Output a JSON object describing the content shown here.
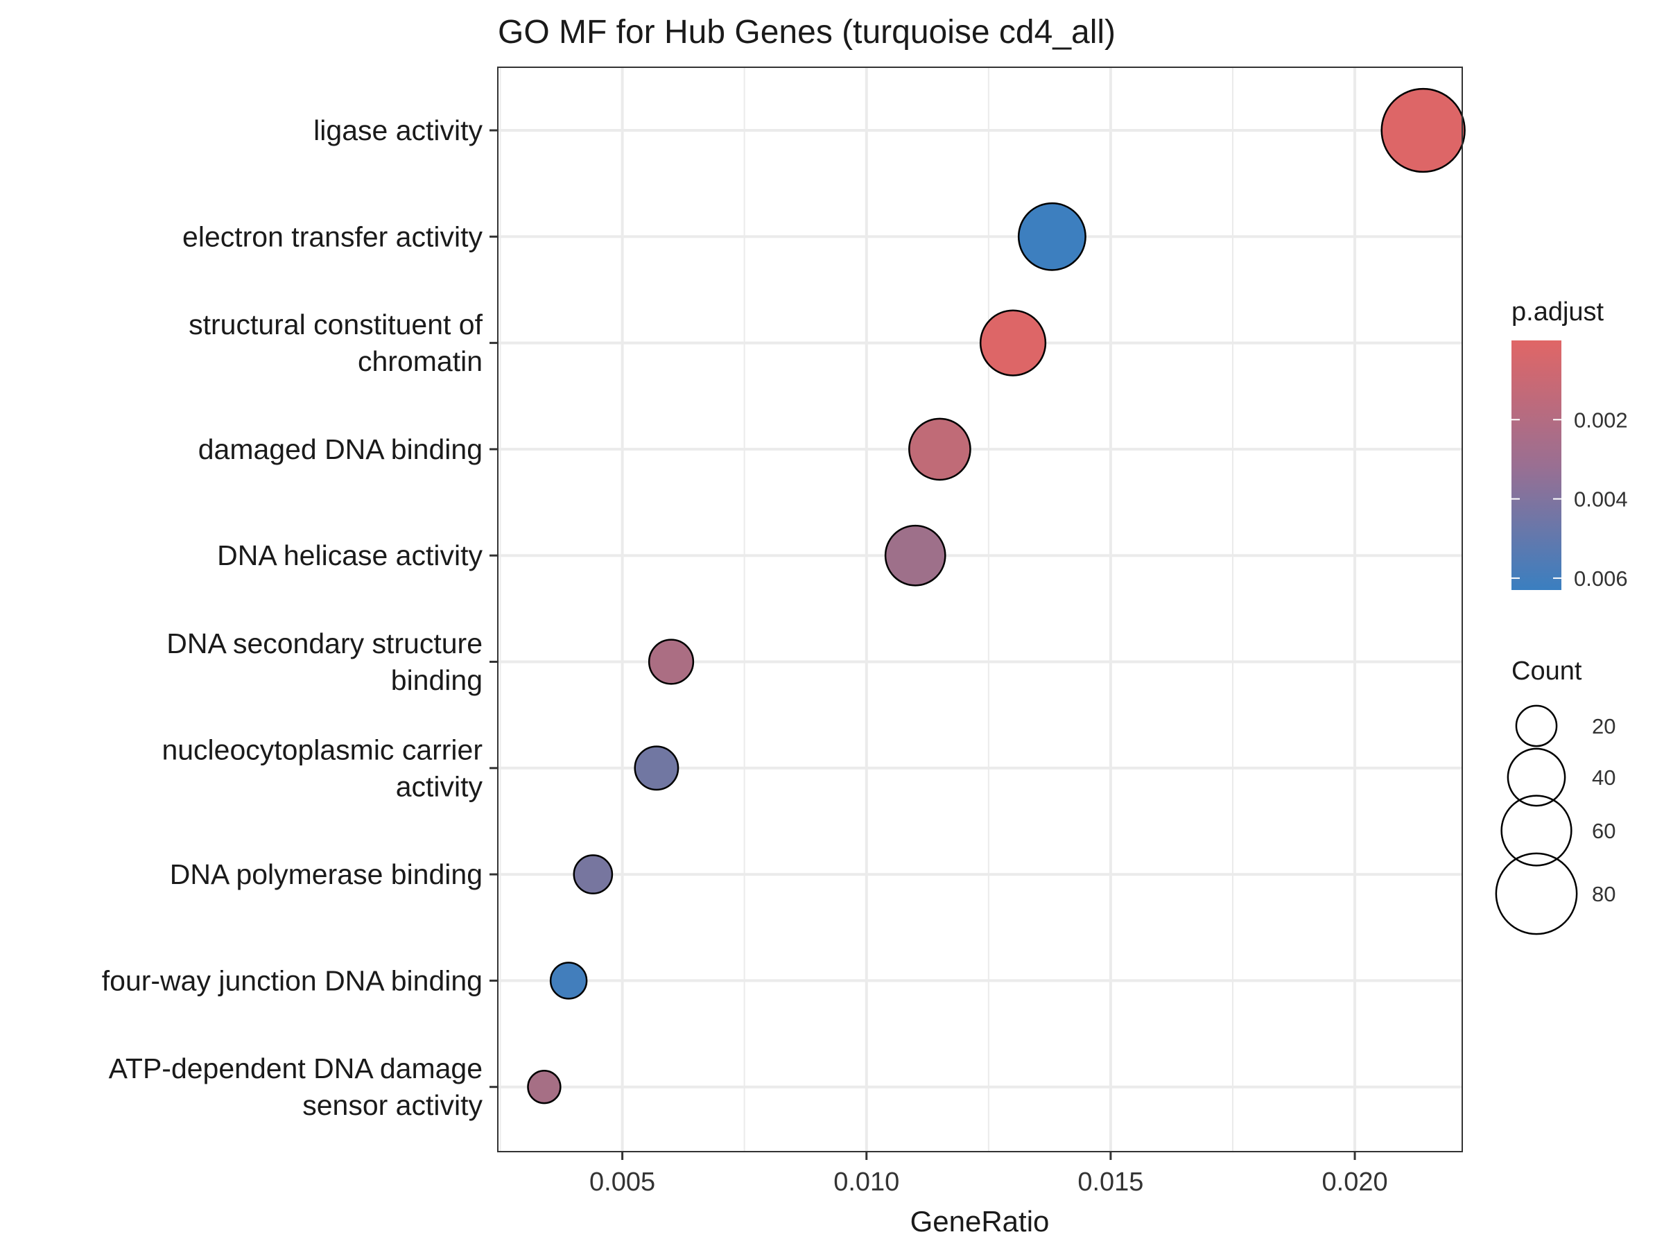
{
  "chart_data": {
    "type": "scatter",
    "title": "GO MF for Hub Genes (turquoise cd4_all)",
    "xlabel": "GeneRatio",
    "ylabel": "",
    "xlim": [
      0.00245,
      0.0222
    ],
    "x_ticks": [
      0.005,
      0.01,
      0.015,
      0.02
    ],
    "x_tick_labels": [
      "0.005",
      "0.010",
      "0.015",
      "0.020"
    ],
    "grid": true,
    "categories": [
      "ligase activity",
      "electron transfer activity",
      "structural constituent of chromatin",
      "damaged DNA binding",
      "DNA helicase activity",
      "DNA secondary structure binding",
      "nucleocytoplasmic carrier activity",
      "DNA polymerase binding",
      "four-way junction DNA binding",
      "ATP-dependent DNA damage sensor activity"
    ],
    "category_label_lines": [
      [
        "ligase activity"
      ],
      [
        "electron transfer activity"
      ],
      [
        "structural constituent of",
        "chromatin"
      ],
      [
        "damaged DNA binding"
      ],
      [
        "DNA helicase activity"
      ],
      [
        "DNA secondary structure",
        "binding"
      ],
      [
        "nucleocytoplasmic carrier",
        "activity"
      ],
      [
        "DNA polymerase binding"
      ],
      [
        "four-way junction DNA binding"
      ],
      [
        "ATP-dependent DNA damage",
        "sensor activity"
      ]
    ],
    "points": [
      {
        "term": "ligase activity",
        "gene_ratio": 0.0214,
        "count": 85,
        "p_adjust": 0.0001
      },
      {
        "term": "electron transfer activity",
        "gene_ratio": 0.0138,
        "count": 55,
        "p_adjust": 0.0062
      },
      {
        "term": "structural constituent of chromatin",
        "gene_ratio": 0.013,
        "count": 52,
        "p_adjust": 0.0001
      },
      {
        "term": "damaged DNA binding",
        "gene_ratio": 0.0115,
        "count": 46,
        "p_adjust": 0.0012
      },
      {
        "term": "DNA helicase activity",
        "gene_ratio": 0.011,
        "count": 44,
        "p_adjust": 0.0025
      },
      {
        "term": "DNA secondary structure binding",
        "gene_ratio": 0.006,
        "count": 24,
        "p_adjust": 0.002
      },
      {
        "term": "nucleocytoplasmic carrier activity",
        "gene_ratio": 0.0057,
        "count": 23,
        "p_adjust": 0.0042
      },
      {
        "term": "DNA polymerase binding",
        "gene_ratio": 0.0044,
        "count": 18,
        "p_adjust": 0.004
      },
      {
        "term": "four-way junction DNA binding",
        "gene_ratio": 0.0039,
        "count": 16,
        "p_adjust": 0.006
      },
      {
        "term": "ATP-dependent DNA damage sensor activity",
        "gene_ratio": 0.0034,
        "count": 13,
        "p_adjust": 0.0022
      }
    ],
    "color_legend": {
      "title": "p.adjust",
      "min": 0.0,
      "max": 0.0063,
      "low_color": "#e06666",
      "high_color": "#3a7fc0",
      "ticks": [
        0.002,
        0.004,
        0.006
      ],
      "tick_labels": [
        "0.002",
        "0.004",
        "0.006"
      ]
    },
    "size_legend": {
      "title": "Count",
      "values": [
        20,
        40,
        60,
        80
      ],
      "labels": [
        "20",
        "40",
        "60",
        "80"
      ]
    },
    "legend_position": "right"
  }
}
